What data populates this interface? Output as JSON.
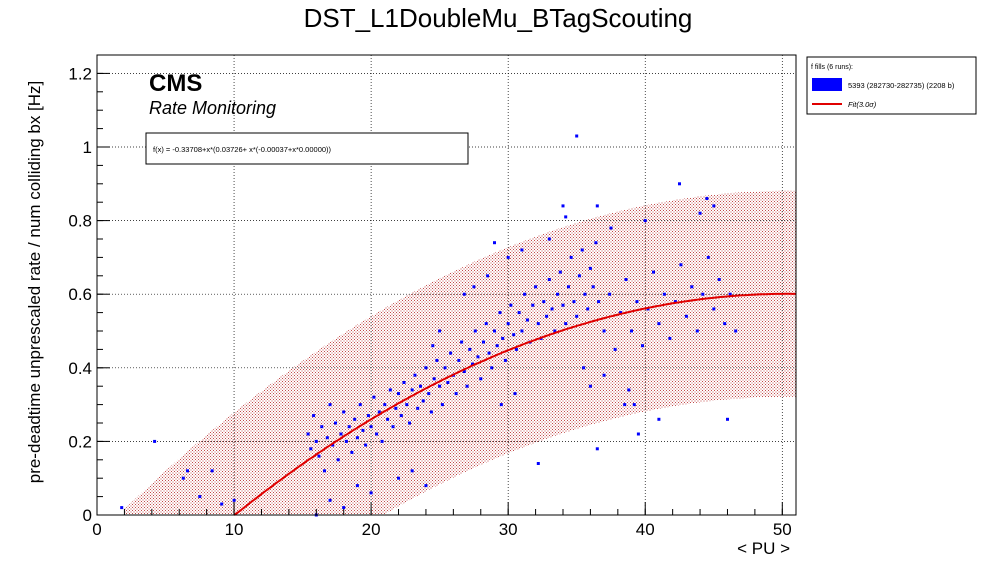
{
  "chart_data": {
    "type": "scatter",
    "title": "DST_L1DoubleMu_BTagScouting",
    "xlabel": "< PU >",
    "ylabel": "pre-deadtime unprescaled rate / num colliding bx [Hz]",
    "xlim": [
      0,
      51
    ],
    "ylim": [
      0,
      1.25
    ],
    "xticks": [
      "0",
      "10",
      "20",
      "30",
      "40",
      "50"
    ],
    "yticks": [
      "0",
      "0.2",
      "0.4",
      "0.6",
      "0.8",
      "1",
      "1.2"
    ],
    "grid": true,
    "cms_label": "CMS",
    "subtitle": "Rate Monitoring",
    "fit_formula": "f(x) = -0.33708+x*(0.03726+ x*(-0.00037+x*0.00000))",
    "fit": {
      "coefficients": [
        -0.33708,
        0.03726,
        -0.00037,
        0.0
      ],
      "x_range": [
        10,
        51
      ],
      "band_halfwidth": 0.28,
      "band_x_range": [
        2,
        51
      ],
      "color": "#e00000"
    },
    "legend": {
      "placement": "top-right outside",
      "header": "f fills (6 runs):",
      "entries": [
        {
          "label": "5393 (282730-282735) (2208 b)",
          "color": "#0000ff",
          "kind": "box"
        },
        {
          "label": "Fit(3.0σ)",
          "color": "#e00000",
          "kind": "line"
        }
      ]
    },
    "series": [
      {
        "name": "5393 (282730-282735) (2208 b)",
        "color": "#0000ff",
        "points": [
          [
            1.8,
            0.02
          ],
          [
            4.2,
            0.2
          ],
          [
            6.3,
            0.1
          ],
          [
            6.6,
            0.12
          ],
          [
            7.5,
            0.05
          ],
          [
            8.4,
            0.12
          ],
          [
            9.1,
            0.03
          ],
          [
            10.0,
            0.04
          ],
          [
            15.4,
            0.22
          ],
          [
            15.6,
            0.18
          ],
          [
            15.8,
            0.27
          ],
          [
            16.0,
            0.2
          ],
          [
            16.2,
            0.16
          ],
          [
            16.4,
            0.24
          ],
          [
            16.6,
            0.12
          ],
          [
            16.8,
            0.21
          ],
          [
            17.0,
            0.3
          ],
          [
            17.2,
            0.19
          ],
          [
            17.4,
            0.25
          ],
          [
            17.6,
            0.15
          ],
          [
            17.8,
            0.22
          ],
          [
            18.0,
            0.28
          ],
          [
            18.2,
            0.2
          ],
          [
            18.4,
            0.24
          ],
          [
            18.6,
            0.17
          ],
          [
            18.8,
            0.26
          ],
          [
            19.0,
            0.21
          ],
          [
            19.2,
            0.3
          ],
          [
            19.4,
            0.23
          ],
          [
            19.6,
            0.19
          ],
          [
            19.8,
            0.27
          ],
          [
            20.0,
            0.24
          ],
          [
            20.2,
            0.32
          ],
          [
            20.4,
            0.22
          ],
          [
            20.6,
            0.28
          ],
          [
            20.8,
            0.2
          ],
          [
            21.0,
            0.3
          ],
          [
            21.2,
            0.26
          ],
          [
            21.4,
            0.34
          ],
          [
            21.6,
            0.24
          ],
          [
            21.8,
            0.29
          ],
          [
            22.0,
            0.33
          ],
          [
            22.2,
            0.27
          ],
          [
            22.4,
            0.36
          ],
          [
            22.6,
            0.3
          ],
          [
            22.8,
            0.25
          ],
          [
            23.0,
            0.34
          ],
          [
            23.2,
            0.38
          ],
          [
            23.4,
            0.29
          ],
          [
            23.6,
            0.35
          ],
          [
            23.8,
            0.31
          ],
          [
            24.0,
            0.4
          ],
          [
            24.2,
            0.33
          ],
          [
            24.4,
            0.28
          ],
          [
            24.6,
            0.37
          ],
          [
            24.8,
            0.42
          ],
          [
            25.0,
            0.35
          ],
          [
            25.2,
            0.3
          ],
          [
            25.4,
            0.4
          ],
          [
            25.6,
            0.36
          ],
          [
            25.8,
            0.44
          ],
          [
            26.0,
            0.38
          ],
          [
            26.2,
            0.33
          ],
          [
            26.4,
            0.42
          ],
          [
            26.6,
            0.47
          ],
          [
            26.8,
            0.39
          ],
          [
            27.0,
            0.35
          ],
          [
            27.2,
            0.45
          ],
          [
            27.4,
            0.41
          ],
          [
            27.6,
            0.5
          ],
          [
            27.8,
            0.43
          ],
          [
            28.0,
            0.37
          ],
          [
            28.2,
            0.47
          ],
          [
            28.4,
            0.52
          ],
          [
            28.6,
            0.44
          ],
          [
            28.8,
            0.4
          ],
          [
            29.0,
            0.5
          ],
          [
            29.2,
            0.46
          ],
          [
            29.4,
            0.55
          ],
          [
            29.6,
            0.48
          ],
          [
            29.8,
            0.42
          ],
          [
            30.0,
            0.52
          ],
          [
            30.2,
            0.57
          ],
          [
            30.4,
            0.49
          ],
          [
            30.6,
            0.45
          ],
          [
            30.8,
            0.55
          ],
          [
            31.0,
            0.5
          ],
          [
            31.2,
            0.6
          ],
          [
            31.4,
            0.53
          ],
          [
            31.6,
            0.47
          ],
          [
            31.8,
            0.57
          ],
          [
            32.0,
            0.62
          ],
          [
            32.2,
            0.52
          ],
          [
            32.4,
            0.48
          ],
          [
            32.6,
            0.58
          ],
          [
            32.8,
            0.54
          ],
          [
            33.0,
            0.64
          ],
          [
            33.2,
            0.56
          ],
          [
            33.4,
            0.5
          ],
          [
            33.6,
            0.6
          ],
          [
            33.8,
            0.66
          ],
          [
            34.0,
            0.57
          ],
          [
            34.2,
            0.52
          ],
          [
            34.4,
            0.62
          ],
          [
            34.6,
            0.7
          ],
          [
            34.8,
            0.58
          ],
          [
            35.0,
            0.54
          ],
          [
            35.2,
            0.65
          ],
          [
            35.4,
            0.72
          ],
          [
            35.6,
            0.6
          ],
          [
            35.8,
            0.56
          ],
          [
            36.0,
            0.67
          ],
          [
            36.2,
            0.62
          ],
          [
            36.4,
            0.74
          ],
          [
            36.6,
            0.58
          ],
          [
            37.0,
            0.5
          ],
          [
            37.4,
            0.6
          ],
          [
            37.8,
            0.45
          ],
          [
            38.2,
            0.55
          ],
          [
            38.6,
            0.64
          ],
          [
            39.0,
            0.5
          ],
          [
            39.4,
            0.58
          ],
          [
            39.8,
            0.46
          ],
          [
            40.2,
            0.56
          ],
          [
            40.6,
            0.66
          ],
          [
            41.0,
            0.52
          ],
          [
            41.4,
            0.6
          ],
          [
            41.8,
            0.48
          ],
          [
            42.2,
            0.58
          ],
          [
            42.6,
            0.68
          ],
          [
            43.0,
            0.54
          ],
          [
            43.4,
            0.62
          ],
          [
            43.8,
            0.5
          ],
          [
            44.2,
            0.6
          ],
          [
            44.6,
            0.7
          ],
          [
            45.0,
            0.56
          ],
          [
            45.4,
            0.64
          ],
          [
            45.8,
            0.52
          ],
          [
            46.2,
            0.6
          ],
          [
            46.6,
            0.5
          ],
          [
            44.5,
            0.86
          ],
          [
            45.0,
            0.84
          ],
          [
            42.5,
            0.9
          ],
          [
            44.0,
            0.82
          ],
          [
            46.0,
            0.26
          ],
          [
            39.5,
            0.22
          ],
          [
            36.5,
            0.18
          ],
          [
            32.2,
            0.14
          ],
          [
            34.2,
            0.81
          ],
          [
            34.0,
            0.84
          ],
          [
            35.0,
            1.03
          ],
          [
            36.5,
            0.84
          ],
          [
            29.0,
            0.74
          ],
          [
            39.2,
            0.3
          ],
          [
            41.0,
            0.26
          ],
          [
            38.8,
            0.34
          ],
          [
            22.0,
            0.1
          ],
          [
            23.0,
            0.12
          ],
          [
            24.0,
            0.08
          ],
          [
            17.0,
            0.04
          ],
          [
            16.0,
            0.0
          ],
          [
            18.0,
            0.02
          ],
          [
            20.0,
            0.06
          ],
          [
            19.0,
            0.08
          ],
          [
            25.0,
            0.5
          ],
          [
            26.8,
            0.6
          ],
          [
            24.5,
            0.46
          ],
          [
            27.5,
            0.62
          ],
          [
            30.0,
            0.7
          ],
          [
            31.0,
            0.72
          ],
          [
            28.5,
            0.65
          ],
          [
            33.0,
            0.75
          ],
          [
            37.5,
            0.78
          ],
          [
            40.0,
            0.8
          ],
          [
            38.5,
            0.3
          ],
          [
            36.0,
            0.35
          ],
          [
            35.5,
            0.4
          ],
          [
            37.0,
            0.38
          ],
          [
            30.5,
            0.33
          ],
          [
            29.5,
            0.3
          ]
        ]
      }
    ]
  }
}
